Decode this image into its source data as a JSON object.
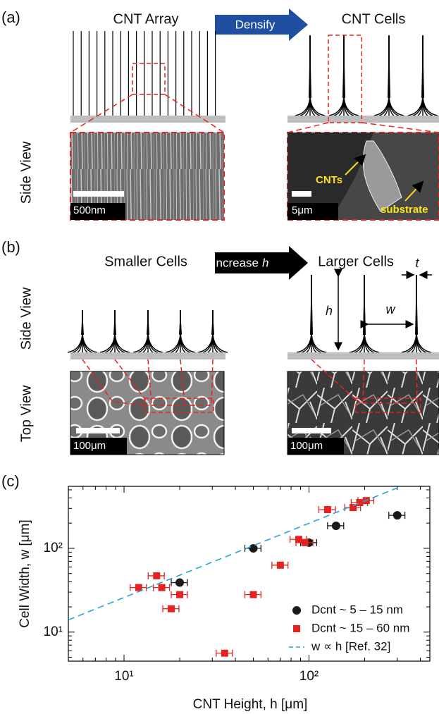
{
  "panel_a": {
    "label": "(a)",
    "left_title": "CNT Array",
    "arrow": "Densify",
    "right_title": "CNT Cells",
    "row_label": "Side View",
    "scale_left": "500nm",
    "scale_right": "5μm",
    "callout_cnts": "CNTs",
    "callout_substrate": "substrate"
  },
  "panel_b": {
    "label": "(b)",
    "left_title": "Smaller Cells",
    "arrow": "Increase",
    "arrow_var": "h",
    "right_title": "Larger Cells",
    "row_label_side": "Side View",
    "row_label_top": "Top View",
    "h_label": "h",
    "w_label": "w",
    "t_label": "t",
    "scale_left": "100μm",
    "scale_right": "100μm"
  },
  "chart_data": {
    "type": "scatter",
    "label": "(c)",
    "xlabel": "CNT Height, h [μm]",
    "ylabel": "Cell Width, w [μm]",
    "xlog": true,
    "ylog": true,
    "xlim": [
      5,
      450
    ],
    "ylim": [
      4.5,
      550
    ],
    "xticks": [
      {
        "value": 10,
        "label": "10¹"
      },
      {
        "value": 100,
        "label": "10²"
      }
    ],
    "yticks": [
      {
        "value": 10,
        "label": "10¹"
      },
      {
        "value": 100,
        "label": "10²"
      }
    ],
    "xminorticks": [
      6,
      7,
      8,
      9,
      20,
      30,
      40,
      50,
      60,
      70,
      80,
      90,
      200,
      300,
      400
    ],
    "yminorticks": [
      5,
      6,
      7,
      8,
      9,
      20,
      30,
      40,
      50,
      60,
      70,
      80,
      90,
      200,
      300,
      400,
      500
    ],
    "legend": "lower right",
    "series": [
      {
        "name": "Dcnt ~ 5 – 15 nm",
        "color": "#1a1a1a",
        "marker": "circle",
        "x": [
          20,
          50,
          100,
          140,
          300
        ],
        "values": [
          39,
          100,
          117,
          186,
          248
        ],
        "xerr": [
          2,
          5,
          10,
          14,
          30
        ]
      },
      {
        "name": "Dcnt ~ 15 – 60 nm",
        "color": "#e52421",
        "marker": "square",
        "x": [
          12,
          15,
          16,
          18,
          20,
          35,
          50,
          70,
          88,
          95,
          126,
          173,
          188,
          204
        ],
        "values": [
          34,
          47,
          34,
          19,
          28,
          5.6,
          28,
          63,
          128,
          117,
          290,
          307,
          352,
          372
        ],
        "xerr": [
          1.2,
          1.5,
          1.6,
          1.8,
          2,
          3.5,
          5,
          7,
          9,
          10,
          13,
          17,
          19,
          20
        ]
      },
      {
        "name": "w ∝ h  [Ref. 32]",
        "color": "#29a3d9",
        "marker": "dashed-line",
        "x": [
          5,
          315
        ],
        "values": [
          14,
          550
        ]
      }
    ]
  }
}
